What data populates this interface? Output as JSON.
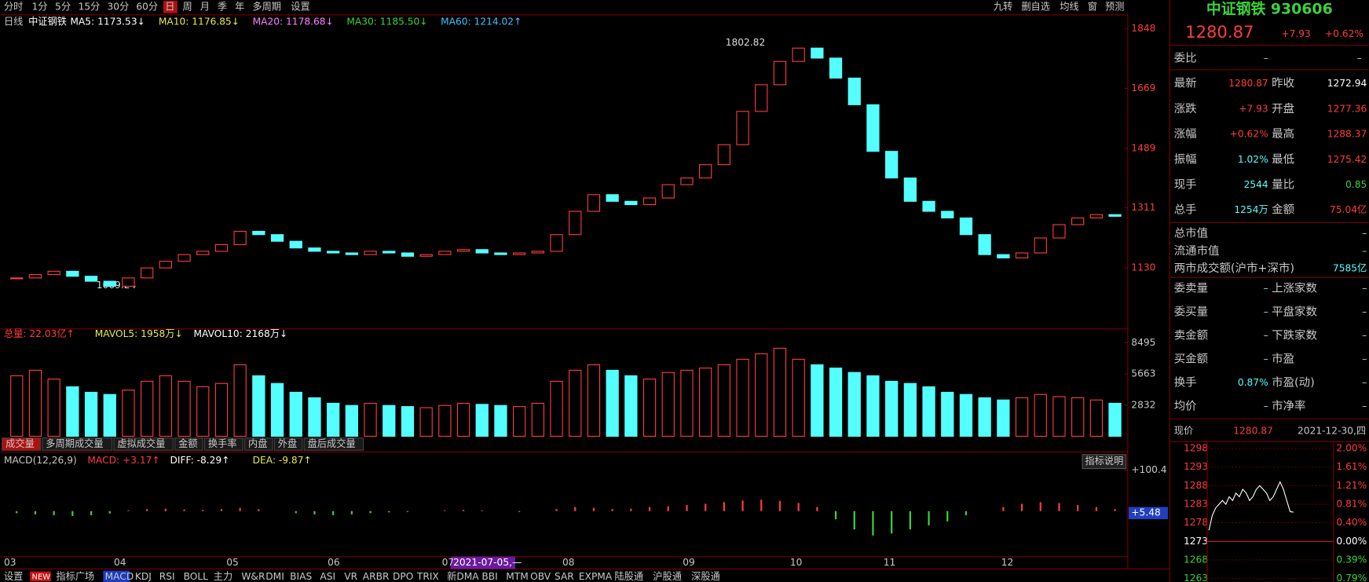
{
  "toolbar": {
    "left": [
      "分时",
      "1分",
      "5分",
      "15分",
      "30分",
      "60分",
      "日",
      "周",
      "月",
      "季",
      "年",
      "多周期",
      "设置"
    ],
    "right": [
      "九转",
      "删自选",
      "均线",
      "窗",
      "预测"
    ]
  },
  "legend": {
    "period": "日线",
    "name": "中证钢铁",
    "ma": [
      "MA5: 1173.53↓",
      "MA10: 1176.85↓",
      "MA20: 1178.68↓",
      "MA30: 1185.50↓",
      "MA60: 1214.02↑"
    ]
  },
  "price_panel": {
    "ylim": [
      952,
      1882
    ],
    "yticks": [
      1848,
      1669,
      1489,
      1311,
      1130
    ],
    "high_label": "1802.82",
    "low_label": "1069.24",
    "closes": [
      1100,
      1110,
      1120,
      1105,
      1090,
      1075,
      1100,
      1130,
      1150,
      1170,
      1180,
      1200,
      1240,
      1230,
      1210,
      1190,
      1180,
      1175,
      1170,
      1180,
      1175,
      1165,
      1170,
      1180,
      1185,
      1175,
      1170,
      1175,
      1180,
      1230,
      1300,
      1350,
      1330,
      1320,
      1340,
      1380,
      1400,
      1440,
      1500,
      1600,
      1680,
      1750,
      1790,
      1760,
      1700,
      1620,
      1480,
      1400,
      1330,
      1300,
      1280,
      1230,
      1170,
      1160,
      1175,
      1220,
      1260,
      1280,
      1290,
      1285
    ]
  },
  "volume_panel": {
    "legend": [
      "总量: 22.03亿↑",
      "MAVOL5: 1958万↓",
      "MAVOL10: 2168万↓"
    ],
    "ylim": [
      0,
      9675
    ],
    "yticks": [
      8495,
      5663,
      2832
    ],
    "values": [
      5500,
      6000,
      5200,
      4500,
      4000,
      3800,
      4200,
      5000,
      5500,
      5000,
      4500,
      4800,
      6500,
      5500,
      4800,
      4000,
      3500,
      3000,
      2800,
      3000,
      2800,
      2700,
      2600,
      2800,
      3000,
      2900,
      2800,
      2700,
      3000,
      5000,
      6000,
      6500,
      6000,
      5500,
      5200,
      5800,
      6000,
      6200,
      6500,
      7000,
      7500,
      8000,
      7000,
      6500,
      6200,
      5800,
      5500,
      5000,
      4800,
      4500,
      4000,
      3800,
      3500,
      3300,
      3500,
      3800,
      3600,
      3500,
      3300,
      3000
    ]
  },
  "volume_tabs": [
    "成交量",
    "多周期成交量",
    "虚拟成交量",
    "金额",
    "换手率",
    "内盘",
    "外盘",
    "盘后成交量"
  ],
  "macd_panel": {
    "legend": [
      "MACD(12,26,9)",
      "MACD: +3.17↑",
      "DIFF: -8.29↑",
      "DEA: -9.87↑"
    ],
    "button": "指标说明",
    "ylim": [
      -112,
      141
    ],
    "yticks": [
      {
        "value": 100.4,
        "label": "+100.4"
      }
    ],
    "current_label": "+5.48",
    "values": [
      -5,
      -8,
      -10,
      -12,
      -10,
      -6,
      2,
      5,
      6,
      4,
      3,
      5,
      8,
      5,
      0,
      -5,
      -8,
      -10,
      -8,
      -5,
      -3,
      -2,
      0,
      2,
      3,
      2,
      0,
      -2,
      0,
      5,
      10,
      8,
      5,
      6,
      10,
      12,
      15,
      18,
      22,
      26,
      28,
      25,
      20,
      10,
      -20,
      -45,
      -60,
      -55,
      -45,
      -35,
      -25,
      -10,
      0,
      10,
      18,
      22,
      20,
      15,
      10,
      5
    ]
  },
  "months": [
    "03",
    "04",
    "05",
    "06",
    "07",
    "08",
    "09",
    "10",
    "11",
    "12"
  ],
  "cursor_date": "2021-07-05,—",
  "bottom_toolbar": [
    "设置",
    "NEW",
    "指标广场",
    "MACD",
    "KDJ",
    "RSI",
    "BOLL",
    "主力",
    "W&R",
    "DMI",
    "BIAS",
    "ASI",
    "VR",
    "ARBR",
    "DPO",
    "TRIX",
    "新DMA",
    "BBI",
    "MTM",
    "OBV",
    "SAR",
    "EXPMA",
    "陆股通",
    "沪股通",
    "深股通"
  ],
  "quote": {
    "name": "中证钢铁 930606",
    "price": "1280.87",
    "change": "+7.93",
    "pct": "+0.62%",
    "weibi_label": "委比",
    "weibi": [
      "–",
      "–"
    ],
    "rows": [
      [
        "最新",
        "1280.87",
        "昨收",
        "1272.94"
      ],
      [
        "涨跌",
        "+7.93",
        "开盘",
        "1277.36"
      ],
      [
        "涨幅",
        "+0.62%",
        "最高",
        "1288.37"
      ],
      [
        "振幅",
        "1.02%",
        "最低",
        "1275.42"
      ],
      [
        "现手",
        "2544",
        "量比",
        "0.85"
      ],
      [
        "总手",
        "1254万",
        "金额",
        "75.04亿"
      ]
    ],
    "market": [
      [
        "总市值",
        "–"
      ],
      [
        "流通市值",
        "–"
      ],
      [
        "两市成交额(沪市+深市)",
        "7585亿"
      ]
    ],
    "rows2": [
      [
        "委卖量",
        "–",
        "上涨家数",
        "–"
      ],
      [
        "委买量",
        "–",
        "平盘家数",
        "–"
      ],
      [
        "卖金额",
        "–",
        "下跌家数",
        "–"
      ],
      [
        "买金额",
        "–",
        "市盈",
        "–"
      ],
      [
        "换手",
        "0.87%",
        "市盈(动)",
        "–"
      ],
      [
        "均价",
        "–",
        "市净率",
        "–"
      ]
    ]
  },
  "intraday": {
    "label": "现价",
    "price": "1280.87",
    "date": "2021-12-30,四",
    "ylim": [
      1263,
      1298
    ],
    "yticks": [
      1298,
      1293,
      1288,
      1283,
      1278,
      1273,
      1268,
      1263
    ],
    "pct_labels": [
      "2.00%",
      "1.61%",
      "1.21%",
      "0.81%",
      "0.40%",
      "0.00%",
      "0.39%",
      "0.79%"
    ],
    "values": [
      1276,
      1280,
      1282,
      1283,
      1284,
      1283,
      1285,
      1284,
      1286,
      1285,
      1287,
      1286,
      1284,
      1285,
      1287,
      1288,
      1287,
      1286,
      1284,
      1285,
      1287,
      1289,
      1287,
      1284,
      1281,
      1280.87
    ]
  }
}
